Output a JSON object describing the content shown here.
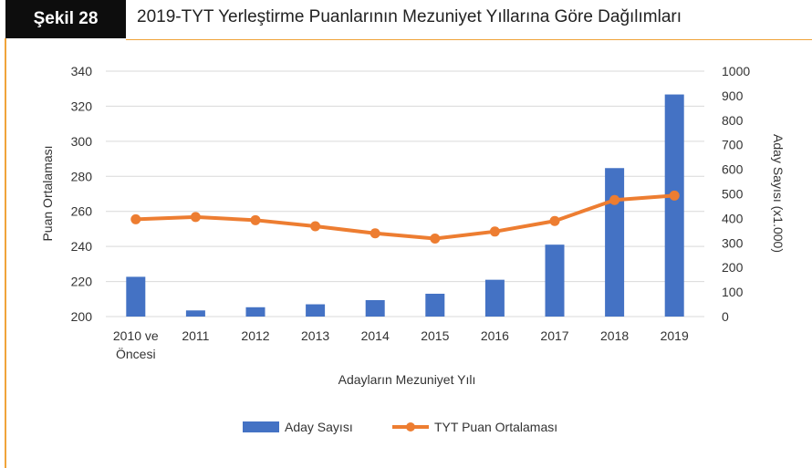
{
  "figure": {
    "tag": "Şekil 28",
    "title": "2019-TYT Yerleştirme Puanlarının Mezuniyet Yıllarına Göre Dağılımları"
  },
  "colors": {
    "bar": "#4472c4",
    "line": "#ed7d31",
    "grid": "#d9d9d9",
    "frame": "#f0a43a"
  },
  "chart_data": {
    "type": "bar",
    "title": "",
    "categories": [
      [
        "2010 ve",
        "Öncesi"
      ],
      [
        "2011"
      ],
      [
        "2012"
      ],
      [
        "2013"
      ],
      [
        "2014"
      ],
      [
        "2015"
      ],
      [
        "2016"
      ],
      [
        "2017"
      ],
      [
        "2018"
      ],
      [
        "2019"
      ]
    ],
    "xlabel": "Adayların Mezuniyet Yılı",
    "ylabel_left": "Puan Ortalaması",
    "ylabel_right": "Aday Sayısı (x1.000)",
    "ylim_left": [
      200,
      340
    ],
    "ylim_right": [
      0,
      1000
    ],
    "yticks_left": [
      200,
      220,
      240,
      260,
      280,
      300,
      320,
      340
    ],
    "yticks_right": [
      0,
      100,
      200,
      300,
      400,
      500,
      600,
      700,
      800,
      900,
      1000
    ],
    "grid": true,
    "legend_position": "bottom",
    "series": [
      {
        "name": "Aday Sayısı",
        "type": "bar",
        "axis": "right",
        "values": [
          162,
          25,
          38,
          50,
          67,
          93,
          150,
          293,
          605,
          905
        ]
      },
      {
        "name": "TYT Puan Ortalaması",
        "type": "line",
        "axis": "left",
        "values": [
          255.5,
          256.8,
          255.0,
          251.5,
          247.5,
          244.5,
          248.5,
          254.5,
          266.5,
          269.0
        ]
      }
    ]
  }
}
